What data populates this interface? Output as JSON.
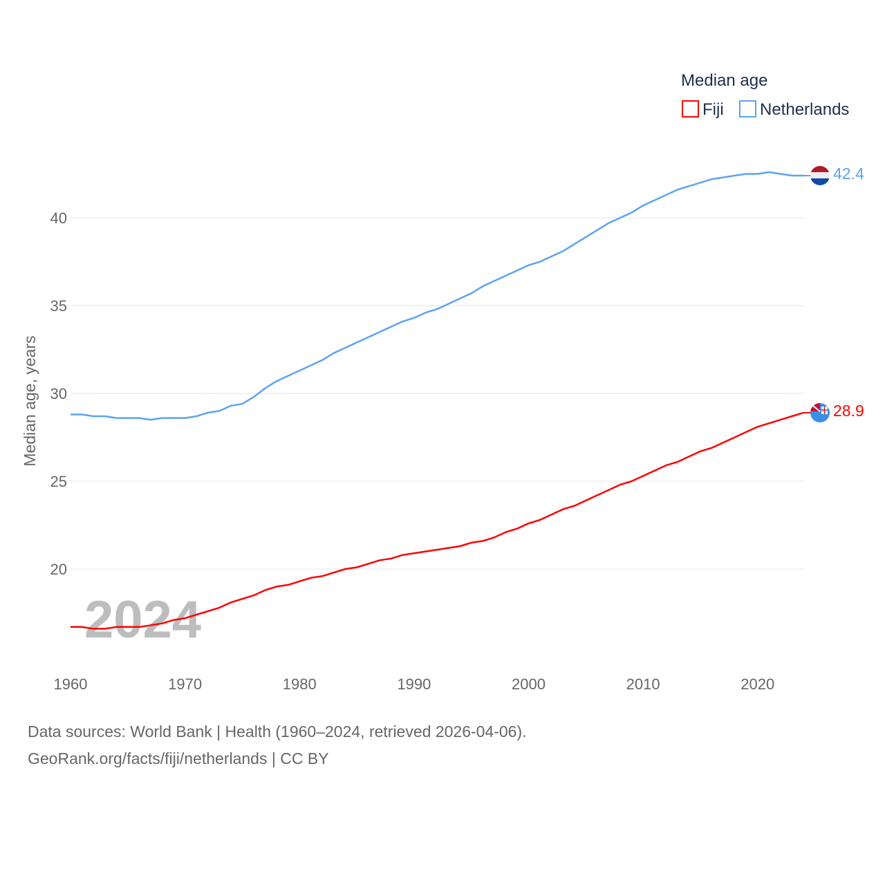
{
  "chart_data": {
    "type": "line",
    "title": "",
    "legend_title": "Median age",
    "legend_placement": "top-right",
    "ylabel": "Median age, years",
    "xlabel": "",
    "xlim": [
      1960,
      2024
    ],
    "ylim": [
      15.4,
      43.0
    ],
    "x_ticks": [
      "1960",
      "1970",
      "1980",
      "1990",
      "2000",
      "2010",
      "2020"
    ],
    "y_ticks": [
      "20",
      "25",
      "30",
      "35",
      "40"
    ],
    "grid": "horizontal",
    "year_watermark": "2024",
    "x": [
      1960,
      1961,
      1962,
      1963,
      1964,
      1965,
      1966,
      1967,
      1968,
      1969,
      1970,
      1971,
      1972,
      1973,
      1974,
      1975,
      1976,
      1977,
      1978,
      1979,
      1980,
      1981,
      1982,
      1983,
      1984,
      1985,
      1986,
      1987,
      1988,
      1989,
      1990,
      1991,
      1992,
      1993,
      1994,
      1995,
      1996,
      1997,
      1998,
      1999,
      2000,
      2001,
      2002,
      2003,
      2004,
      2005,
      2006,
      2007,
      2008,
      2009,
      2010,
      2011,
      2012,
      2013,
      2014,
      2015,
      2016,
      2017,
      2018,
      2019,
      2020,
      2021,
      2022,
      2023,
      2024
    ],
    "series": [
      {
        "name": "Fiji",
        "color": "#ff0000",
        "end_label": "28.9",
        "values": [
          16.7,
          16.7,
          16.6,
          16.6,
          16.7,
          16.7,
          16.7,
          16.8,
          16.9,
          17.1,
          17.2,
          17.4,
          17.6,
          17.8,
          18.1,
          18.3,
          18.5,
          18.8,
          19.0,
          19.1,
          19.3,
          19.5,
          19.6,
          19.8,
          20.0,
          20.1,
          20.3,
          20.5,
          20.6,
          20.8,
          20.9,
          21.0,
          21.1,
          21.2,
          21.3,
          21.5,
          21.6,
          21.8,
          22.1,
          22.3,
          22.6,
          22.8,
          23.1,
          23.4,
          23.6,
          23.9,
          24.2,
          24.5,
          24.8,
          25.0,
          25.3,
          25.6,
          25.9,
          26.1,
          26.4,
          26.7,
          26.9,
          27.2,
          27.5,
          27.8,
          28.1,
          28.3,
          28.5,
          28.7,
          28.9
        ]
      },
      {
        "name": "Netherlands",
        "color": "#5ba3f0",
        "end_label": "42.4",
        "values": [
          28.8,
          28.8,
          28.7,
          28.7,
          28.6,
          28.6,
          28.6,
          28.5,
          28.6,
          28.6,
          28.6,
          28.7,
          28.9,
          29.0,
          29.3,
          29.4,
          29.8,
          30.3,
          30.7,
          31.0,
          31.3,
          31.6,
          31.9,
          32.3,
          32.6,
          32.9,
          33.2,
          33.5,
          33.8,
          34.1,
          34.3,
          34.6,
          34.8,
          35.1,
          35.4,
          35.7,
          36.1,
          36.4,
          36.7,
          37.0,
          37.3,
          37.5,
          37.8,
          38.1,
          38.5,
          38.9,
          39.3,
          39.7,
          40.0,
          40.3,
          40.7,
          41.0,
          41.3,
          41.6,
          41.8,
          42.0,
          42.2,
          42.3,
          42.4,
          42.5,
          42.5,
          42.6,
          42.5,
          42.4,
          42.4
        ]
      }
    ]
  },
  "footer": {
    "sources": "Data sources: World Bank | Health (1960–2024, retrieved 2026-04-06).",
    "credit": "GeoRank.org/facts/fiji/netherlands | CC BY"
  }
}
